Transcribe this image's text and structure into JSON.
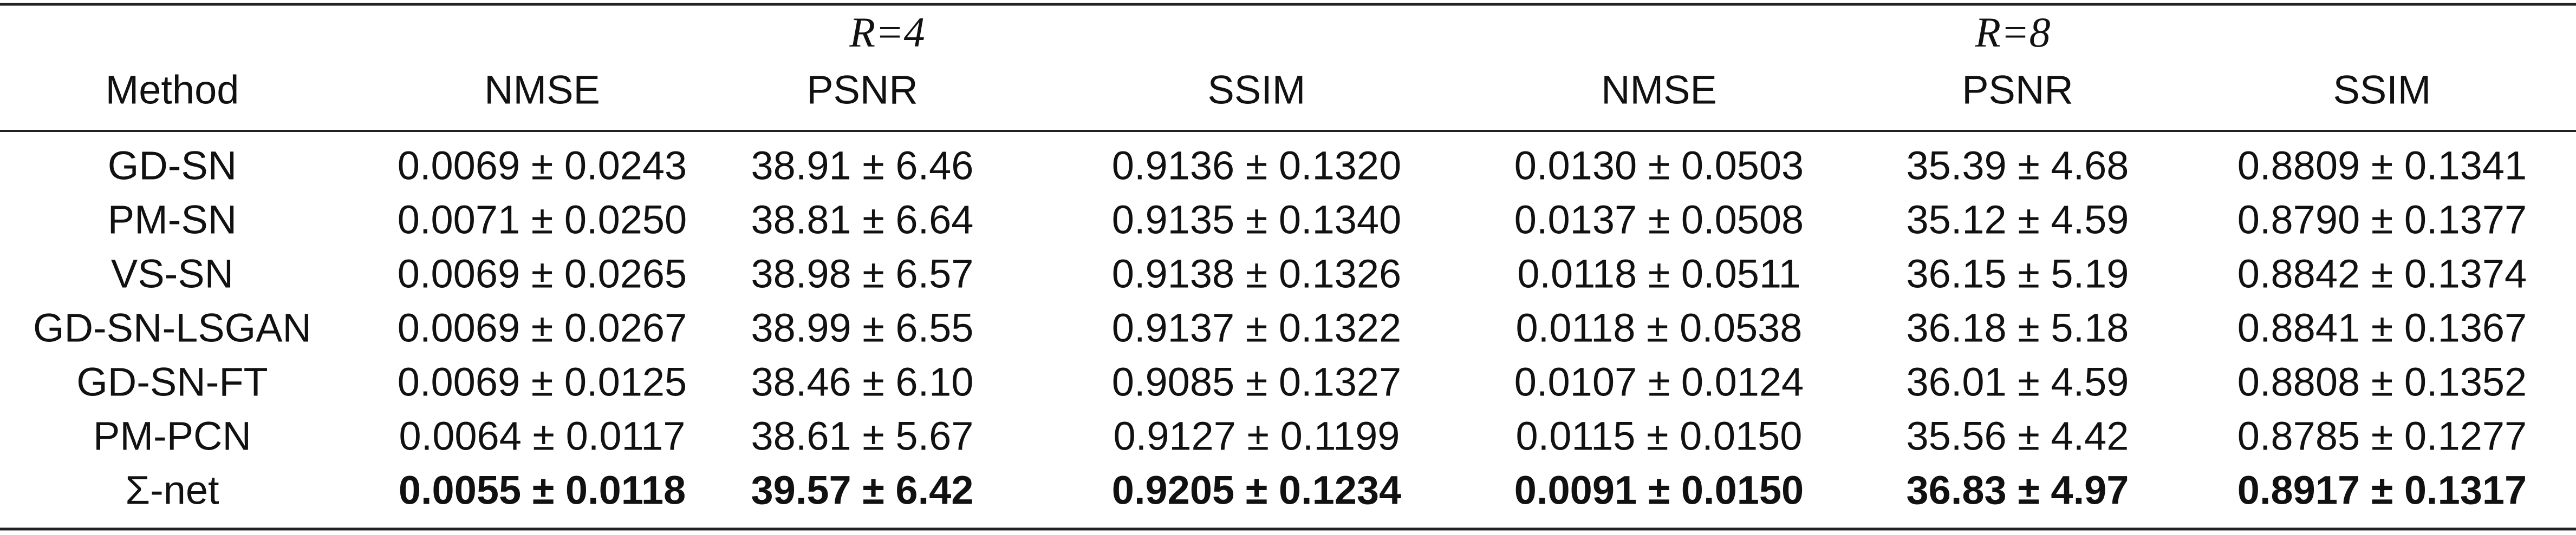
{
  "table": {
    "groups": [
      "R=4",
      "R=8"
    ],
    "columns": [
      "Method",
      "NMSE",
      "PSNR",
      "SSIM",
      "NMSE",
      "PSNR",
      "SSIM"
    ],
    "rows": [
      [
        "GD-SN",
        "0.0069 ± 0.0243",
        "38.91 ± 6.46",
        "0.9136 ± 0.1320",
        "0.0130 ± 0.0503",
        "35.39 ± 4.68",
        "0.8809 ± 0.1341"
      ],
      [
        "PM-SN",
        "0.0071 ± 0.0250",
        "38.81 ± 6.64",
        "0.9135 ± 0.1340",
        "0.0137 ± 0.0508",
        "35.12 ± 4.59",
        "0.8790 ± 0.1377"
      ],
      [
        "VS-SN",
        "0.0069 ± 0.0265",
        "38.98 ± 6.57",
        "0.9138 ± 0.1326",
        "0.0118 ± 0.0511",
        "36.15 ± 5.19",
        "0.8842 ± 0.1374"
      ],
      [
        "GD-SN-LSGAN",
        "0.0069 ± 0.0267",
        "38.99 ± 6.55",
        "0.9137 ± 0.1322",
        "0.0118 ± 0.0538",
        "36.18 ± 5.18",
        "0.8841 ± 0.1367"
      ],
      [
        "GD-SN-FT",
        "0.0069 ± 0.0125",
        "38.46 ± 6.10",
        "0.9085 ± 0.1327",
        "0.0107 ± 0.0124",
        "36.01 ± 4.59",
        "0.8808 ± 0.1352"
      ],
      [
        "PM-PCN",
        "0.0064 ± 0.0117",
        "38.61 ± 5.67",
        "0.9127 ± 0.1199",
        "0.0115 ± 0.0150",
        "35.56 ± 4.42",
        "0.8785 ± 0.1277"
      ],
      [
        "Σ-net",
        "0.0055 ± 0.0118",
        "39.57 ± 6.42",
        "0.9205 ± 0.1234",
        "0.0091 ± 0.0150",
        "36.83 ± 4.97",
        "0.8917 ± 0.1317"
      ]
    ]
  }
}
